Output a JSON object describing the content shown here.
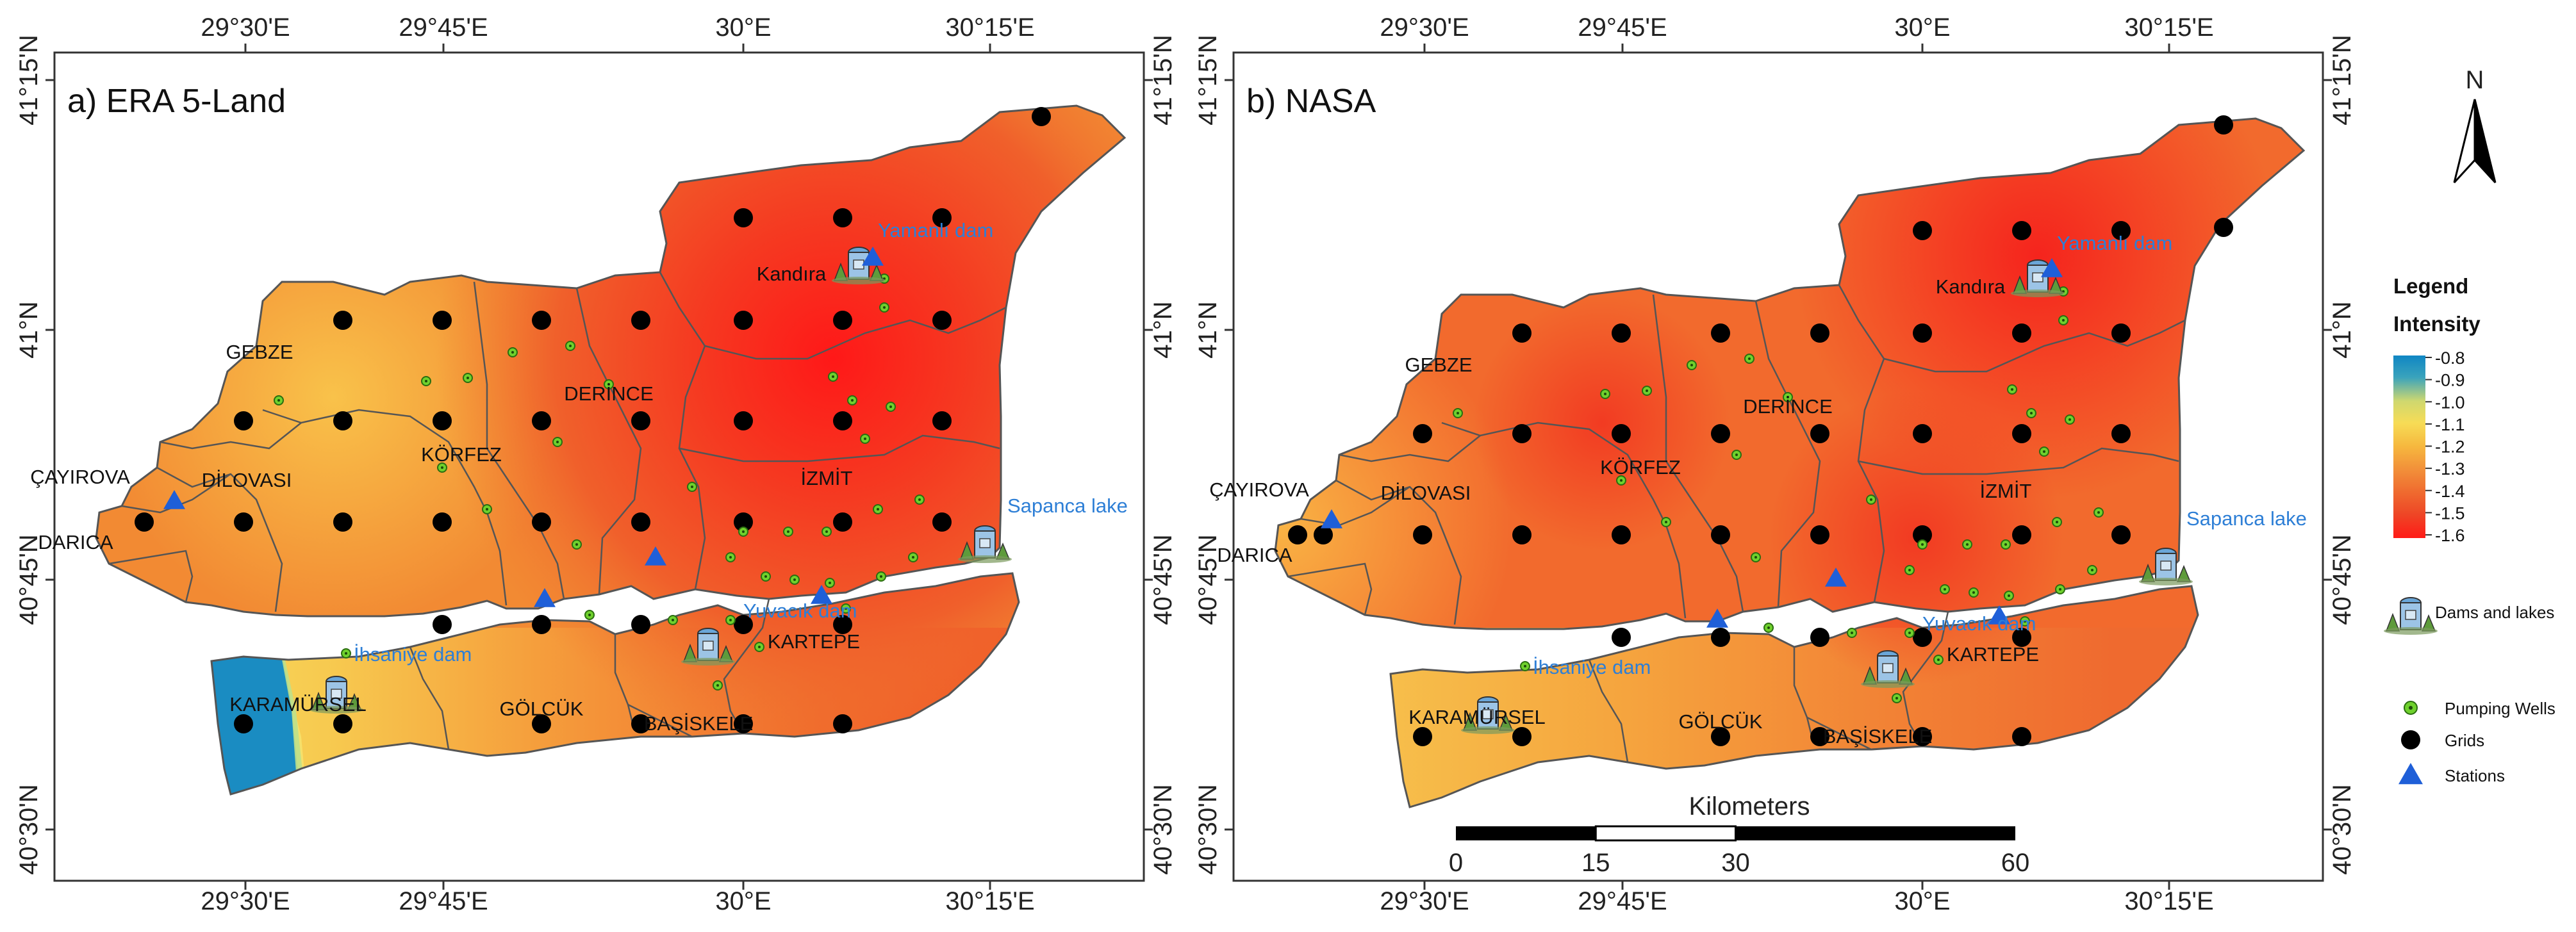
{
  "panels": [
    {
      "id": "era",
      "title": "a) ERA 5-Land",
      "top_ticks": [
        "29°30'E",
        "29°45'E",
        "30°E",
        "30°15'E"
      ],
      "bottom_ticks": [
        "29°30'E",
        "29°45'E",
        "30°E",
        "30°15'E"
      ],
      "left_ticks": [
        "41°15'N",
        "41°N",
        "40°45'N",
        "40°30'N"
      ],
      "right_ticks": [
        "41°15'N",
        "41°N",
        "40°45'N",
        "40°30'N"
      ],
      "districts": [
        "GEBZE",
        "ÇAYIROVA",
        "DİLOVASI",
        "DARICA",
        "KÖRFEZ",
        "DERİNCE",
        "İZMİT",
        "Kandıra",
        "KARTEPE",
        "GÖLCÜK",
        "KARAMÜRSEL",
        "BAŞİSKELE"
      ],
      "water_labels": [
        "Yamanlı dam",
        "Yuvacık dam",
        "İhsaniye dam",
        "Sapanca lake"
      ]
    },
    {
      "id": "nasa",
      "title": "b) NASA",
      "top_ticks": [
        "29°30'E",
        "29°45'E",
        "30°E",
        "30°15'E"
      ],
      "bottom_ticks": [
        "29°30'E",
        "29°45'E",
        "30°E",
        "30°15'E"
      ],
      "left_ticks": [
        "41°15'N",
        "41°N",
        "40°45'N",
        "40°30'N"
      ],
      "right_ticks": [
        "41°15'N",
        "41°N",
        "40°45'N",
        "40°30'N"
      ],
      "districts": [
        "GEBZE",
        "ÇAYIROVA",
        "DİLOVASI",
        "DARICA",
        "KÖRFEZ",
        "DERİNCE",
        "İZMİT",
        "Kandıra",
        "KARTEPE",
        "GÖLCÜK",
        "KARAMÜRSEL",
        "BAŞİSKELE"
      ],
      "water_labels": [
        "Yamanlı dam",
        "Yuvacık dam",
        "İhsaniye dam",
        "Sapanca lake"
      ]
    }
  ],
  "scalebar": {
    "title": "Kilometers",
    "labels": [
      "0",
      "15",
      "30",
      "60"
    ],
    "values_km": [
      0,
      15,
      30,
      60
    ]
  },
  "north_arrow": {
    "label": "N",
    "icon": "north-arrow-icon"
  },
  "legend": {
    "title": "Legend",
    "intensity_title": "Intensity",
    "colorbar_labels": [
      "-0.8",
      "-0.9",
      "-1.0",
      "-1.1",
      "-1.2",
      "-1.3",
      "-1.4",
      "-1.5",
      "-1.6"
    ],
    "colorbar_range": [
      -1.6,
      -0.8
    ],
    "colors": [
      "#0f86c4",
      "#3aa3bc",
      "#cfd86f",
      "#f7dc56",
      "#f6b73e",
      "#f2913a",
      "#ef6a2f",
      "#ee4626",
      "#ff1b17"
    ],
    "items": [
      {
        "label": "Dams and lakes",
        "icon": "dam-icon"
      },
      {
        "label": "Pumping Wells",
        "icon": "pumping-well-icon"
      },
      {
        "label": "Grids",
        "icon": "grid-point-icon"
      },
      {
        "label": "Stations",
        "icon": "station-triangle-icon"
      }
    ]
  },
  "colors": {
    "frame": "#333333",
    "district_border": "#555555",
    "grid_point": "#000000",
    "well_fill": "#6fd12d",
    "station": "#1f5fd8",
    "water_text": "#2e7fd6"
  }
}
